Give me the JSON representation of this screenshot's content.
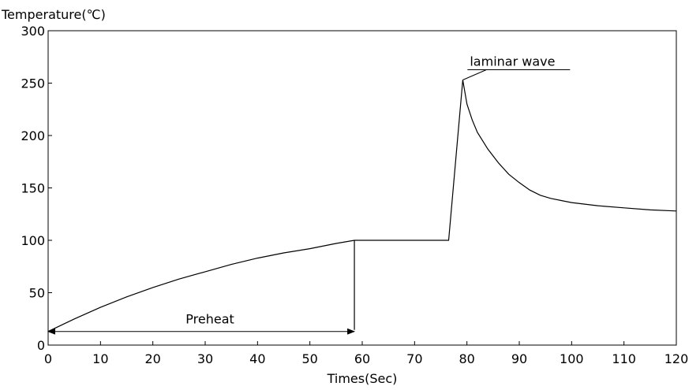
{
  "chart_data": {
    "type": "line",
    "title": "",
    "xlabel": "Times(Sec)",
    "ylabel": "Temperature(℃)",
    "xlim": [
      0,
      120
    ],
    "ylim": [
      0,
      300
    ],
    "x_ticks": [
      0,
      10,
      20,
      30,
      40,
      50,
      60,
      70,
      80,
      90,
      100,
      110,
      120
    ],
    "y_ticks": [
      0,
      50,
      100,
      150,
      200,
      250,
      300
    ],
    "grid": false,
    "series": [
      {
        "x": [
          0,
          5,
          10,
          15,
          20,
          25,
          30,
          35,
          40,
          45,
          50,
          55,
          58.5,
          60,
          65,
          70,
          76.5,
          79.2,
          80,
          81,
          82,
          84,
          86,
          88,
          90,
          92,
          94,
          96,
          98,
          100,
          105,
          110,
          115,
          120
        ],
        "y": [
          13,
          25,
          36,
          46,
          55,
          63,
          70,
          77,
          83,
          88,
          92,
          97,
          100,
          100,
          100,
          100,
          100,
          253,
          230,
          215,
          203,
          187,
          174,
          163,
          155,
          148,
          143,
          140,
          138,
          136,
          133,
          131,
          129,
          128
        ]
      }
    ],
    "annotations": [
      {
        "text": "Preheat",
        "type": "double-arrow",
        "x_start": 0,
        "x_end": 58.5,
        "y": 13
      },
      {
        "text": "laminar wave",
        "type": "leader",
        "x": 79.2,
        "y": 253
      }
    ]
  }
}
